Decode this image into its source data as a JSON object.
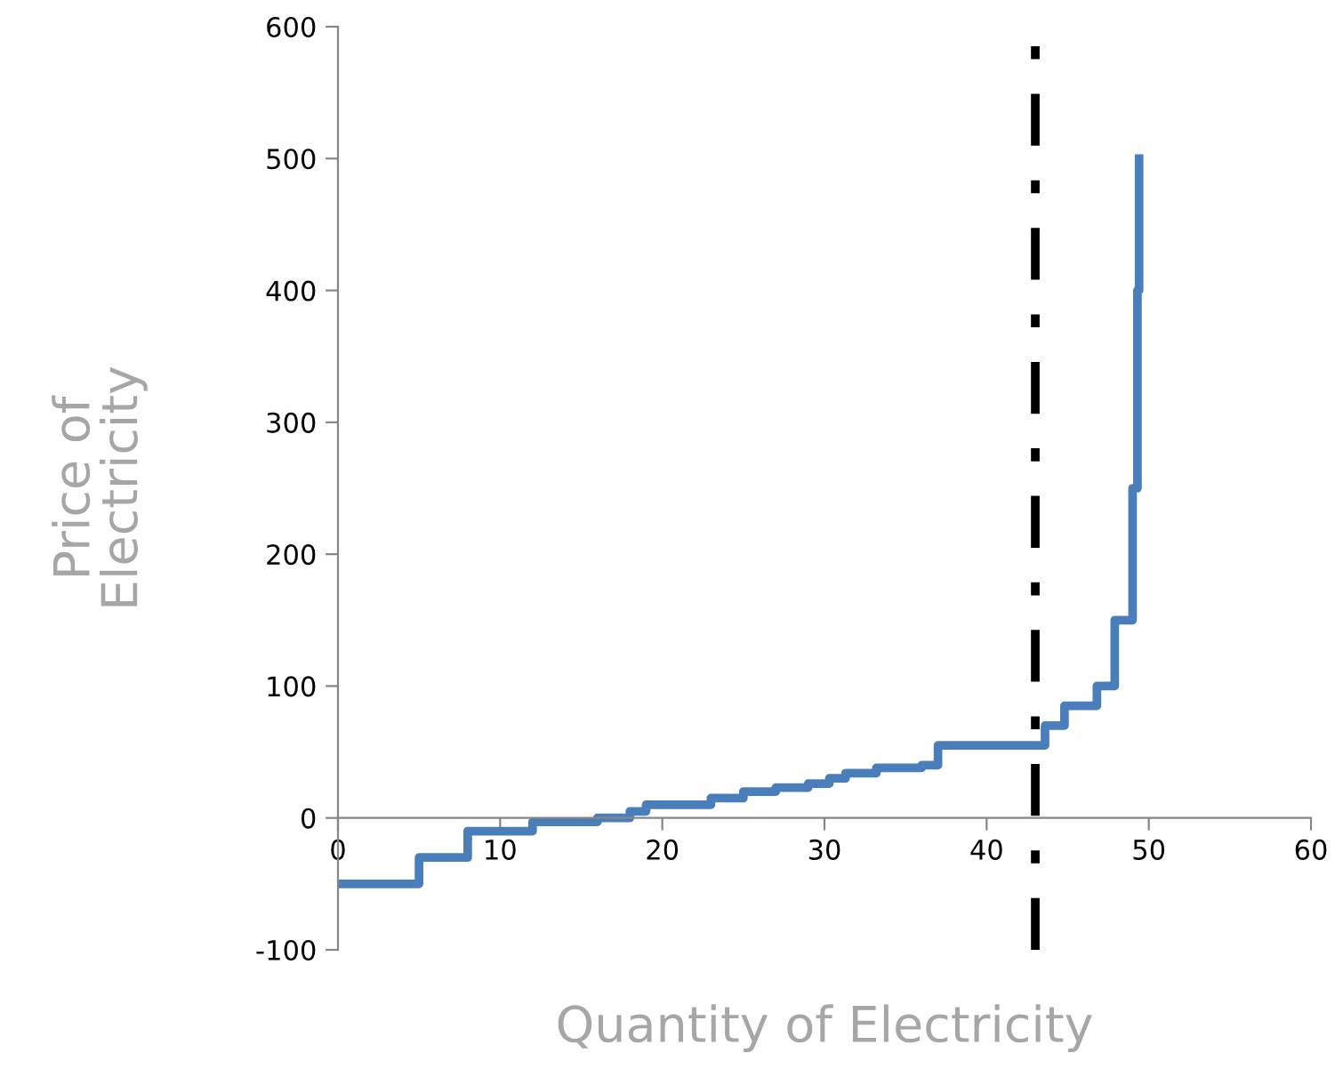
{
  "chart_data": {
    "type": "step",
    "xlabel": "Quantity of Electricity",
    "ylabel": "Price of\nElectricity",
    "series": [
      {
        "color": "#4a7ebb",
        "x": [
          0,
          5,
          8,
          12,
          16,
          18,
          19,
          23,
          25,
          27,
          29,
          30.3,
          31.3,
          33.2,
          36,
          37,
          43.6,
          44.8,
          46.8,
          47.9,
          49,
          49.3,
          49.4
        ],
        "values": [
          -50,
          -30,
          -10,
          -3,
          0,
          5,
          10,
          15,
          20,
          23,
          26,
          30,
          34,
          38,
          40,
          55,
          70,
          85,
          100,
          150,
          250,
          400,
          500
        ]
      }
    ],
    "xlim": [
      0,
      60
    ],
    "xticks": [
      0,
      10,
      20,
      30,
      40,
      50,
      60
    ],
    "ylim": [
      -100,
      600
    ],
    "yticks": [
      -100,
      0,
      100,
      200,
      300,
      400,
      500,
      600
    ],
    "ref_lines": [
      {
        "axis": "x",
        "value": 43,
        "color": "#000000",
        "line_style": "dashdot"
      }
    ],
    "grid": false,
    "legend": false
  }
}
